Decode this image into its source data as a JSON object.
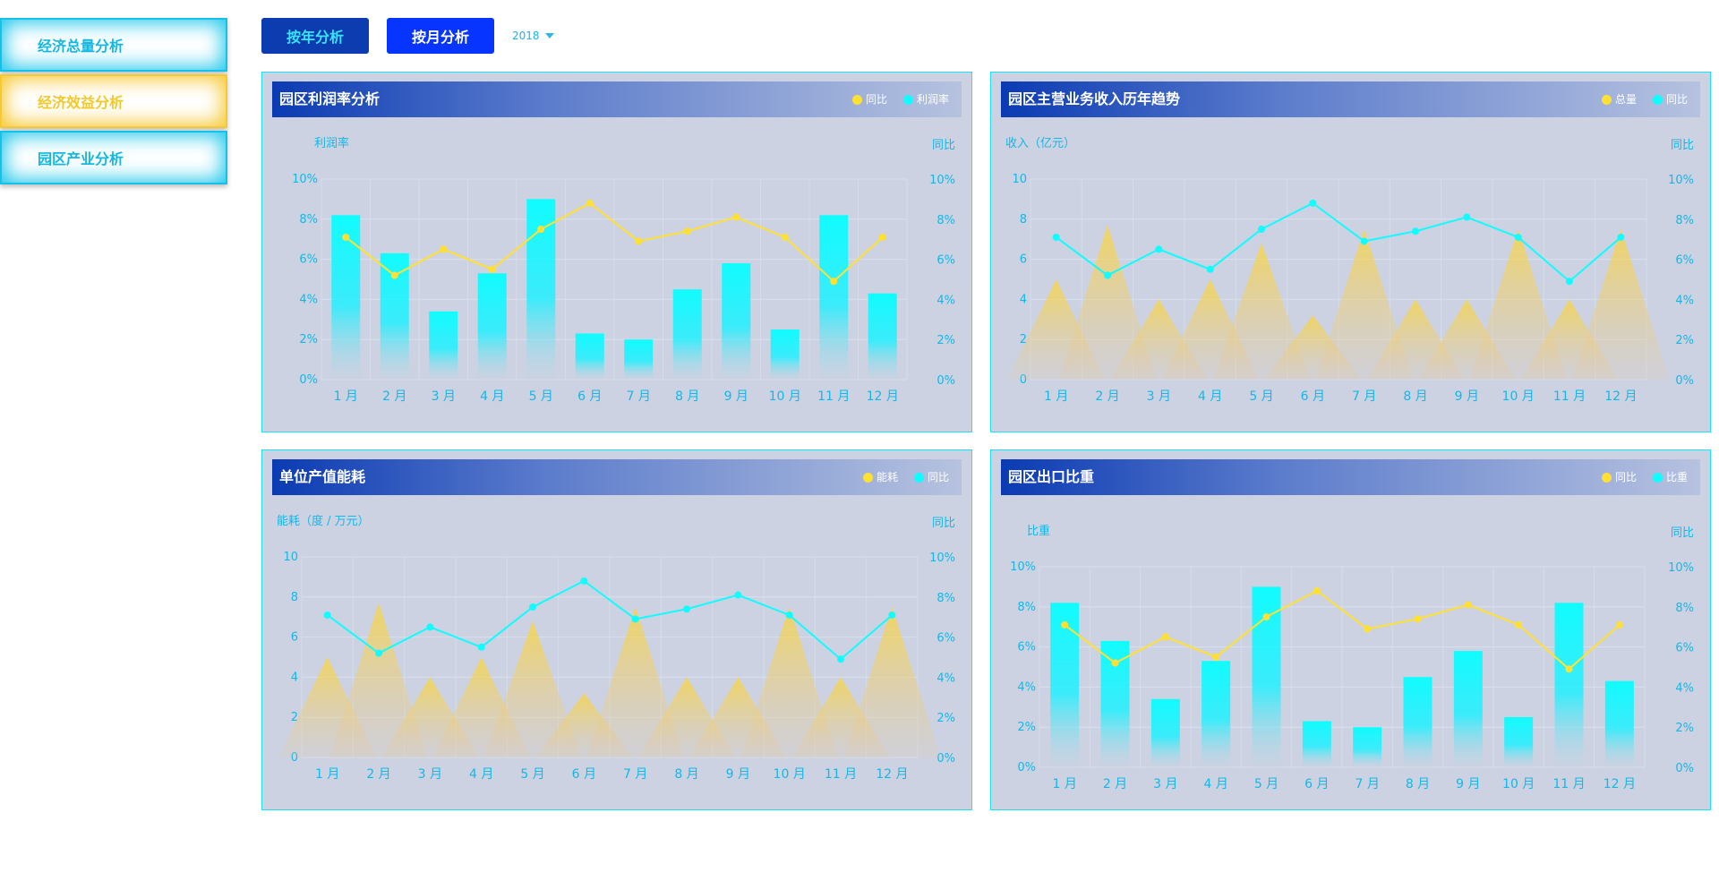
{
  "nav": {
    "items": [
      {
        "label": "经济总量分析"
      },
      {
        "label": "经济效益分析"
      },
      {
        "label": "园区产业分析"
      }
    ]
  },
  "toolbar": {
    "year_btn": "按年分析",
    "month_btn": "按月分析",
    "year_value": "2018"
  },
  "colors": {
    "cyan": "#10fcff",
    "yellow": "#ffe033",
    "grid": "#d9dfec",
    "axis_text": "#12b8e8"
  },
  "panels": [
    {
      "title": "园区利润率分析",
      "legend": [
        {
          "label": "同比",
          "color": "#ffe033"
        },
        {
          "label": "利润率",
          "color": "#10fcff"
        }
      ],
      "chart_data": {
        "type": "bar",
        "categories": [
          "1 月",
          "2 月",
          "3 月",
          "4 月",
          "5 月",
          "6 月",
          "7 月",
          "8 月",
          "9 月",
          "10 月",
          "11 月",
          "12 月"
        ],
        "ylabel": "利润率",
        "y2label": "同比",
        "ylim": [
          0,
          10
        ],
        "y2lim": [
          0,
          10
        ],
        "yticks": [
          "0%",
          "2%",
          "4%",
          "6%",
          "8%",
          "10%"
        ],
        "y2ticks": [
          "0%",
          "2%",
          "4%",
          "6%",
          "8%",
          "10%"
        ],
        "series": [
          {
            "name": "利润率",
            "kind": "bar",
            "color": "#10fcff",
            "values": [
              8.2,
              6.3,
              3.4,
              5.3,
              9.0,
              2.3,
              2.0,
              4.5,
              5.8,
              2.5,
              8.2,
              4.3
            ]
          },
          {
            "name": "同比",
            "kind": "line",
            "color": "#ffe033",
            "axis": "right",
            "values": [
              7.1,
              5.2,
              6.5,
              5.5,
              7.5,
              8.8,
              6.9,
              7.4,
              8.1,
              7.1,
              4.9,
              7.1
            ]
          }
        ]
      }
    },
    {
      "title": "园区主营业务收入历年趋势",
      "legend": [
        {
          "label": "总量",
          "color": "#ffe033"
        },
        {
          "label": "同比",
          "color": "#10fcff"
        }
      ],
      "chart_data": {
        "type": "area",
        "categories": [
          "1 月",
          "2 月",
          "3 月",
          "4 月",
          "5 月",
          "6 月",
          "7 月",
          "8 月",
          "9 月",
          "10 月",
          "11 月",
          "12 月"
        ],
        "ylabel": "收入（亿元）",
        "y2label": "同比",
        "ylim": [
          0,
          10
        ],
        "y2lim": [
          0,
          10
        ],
        "yticks": [
          "0",
          "2",
          "4",
          "6",
          "8",
          "10"
        ],
        "y2ticks": [
          "0%",
          "2%",
          "4%",
          "6%",
          "8%",
          "10%"
        ],
        "series": [
          {
            "name": "总量",
            "kind": "peak",
            "color": "#ffe033",
            "values": [
              5.0,
              7.7,
              4.0,
              5.0,
              6.8,
              3.2,
              7.5,
              4.0,
              4.0,
              7.5,
              4.0,
              7.5
            ]
          },
          {
            "name": "同比",
            "kind": "line",
            "color": "#10fcff",
            "axis": "right",
            "values": [
              7.1,
              5.2,
              6.5,
              5.5,
              7.5,
              8.8,
              6.9,
              7.4,
              8.1,
              7.1,
              4.9,
              7.1
            ]
          }
        ]
      }
    },
    {
      "title": "单位产值能耗",
      "legend": [
        {
          "label": "能耗",
          "color": "#ffe033"
        },
        {
          "label": "同比",
          "color": "#10fcff"
        }
      ],
      "chart_data": {
        "type": "area",
        "categories": [
          "1 月",
          "2 月",
          "3 月",
          "4 月",
          "5 月",
          "6 月",
          "7 月",
          "8 月",
          "9 月",
          "10 月",
          "11 月",
          "12 月"
        ],
        "ylabel": "能耗（度 / 万元）",
        "y2label": "同比",
        "ylim": [
          0,
          10
        ],
        "y2lim": [
          0,
          10
        ],
        "yticks": [
          "0",
          "2",
          "4",
          "6",
          "8",
          "10"
        ],
        "y2ticks": [
          "0%",
          "2%",
          "4%",
          "6%",
          "8%",
          "10%"
        ],
        "series": [
          {
            "name": "能耗",
            "kind": "peak",
            "color": "#ffe033",
            "values": [
              5.0,
              7.7,
              4.0,
              5.0,
              6.8,
              3.2,
              7.5,
              4.0,
              4.0,
              7.5,
              4.0,
              7.5
            ]
          },
          {
            "name": "同比",
            "kind": "line",
            "color": "#10fcff",
            "axis": "right",
            "values": [
              7.1,
              5.2,
              6.5,
              5.5,
              7.5,
              8.8,
              6.9,
              7.4,
              8.1,
              7.1,
              4.9,
              7.1
            ]
          }
        ]
      }
    },
    {
      "title": "园区出口比重",
      "legend": [
        {
          "label": "同比",
          "color": "#ffe033"
        },
        {
          "label": "比重",
          "color": "#10fcff"
        }
      ],
      "chart_data": {
        "type": "bar",
        "categories": [
          "1 月",
          "2 月",
          "3 月",
          "4 月",
          "5 月",
          "6 月",
          "7 月",
          "8 月",
          "9 月",
          "10 月",
          "11 月",
          "12 月"
        ],
        "ylabel": "比重",
        "y2label": "同比",
        "ylim": [
          0,
          10
        ],
        "y2lim": [
          0,
          10
        ],
        "yticks": [
          "0%",
          "2%",
          "4%",
          "6%",
          "8%",
          "10%"
        ],
        "y2ticks": [
          "0%",
          "2%",
          "4%",
          "6%",
          "8%",
          "10%"
        ],
        "series": [
          {
            "name": "比重",
            "kind": "bar",
            "color": "#10fcff",
            "values": [
              8.2,
              6.3,
              3.4,
              5.3,
              9.0,
              2.3,
              2.0,
              4.5,
              5.8,
              2.5,
              8.2,
              4.3
            ]
          },
          {
            "name": "同比",
            "kind": "line",
            "color": "#ffe033",
            "axis": "right",
            "values": [
              7.1,
              5.2,
              6.5,
              5.5,
              7.5,
              8.8,
              6.9,
              7.4,
              8.1,
              7.1,
              4.9,
              7.1
            ]
          }
        ]
      }
    }
  ]
}
